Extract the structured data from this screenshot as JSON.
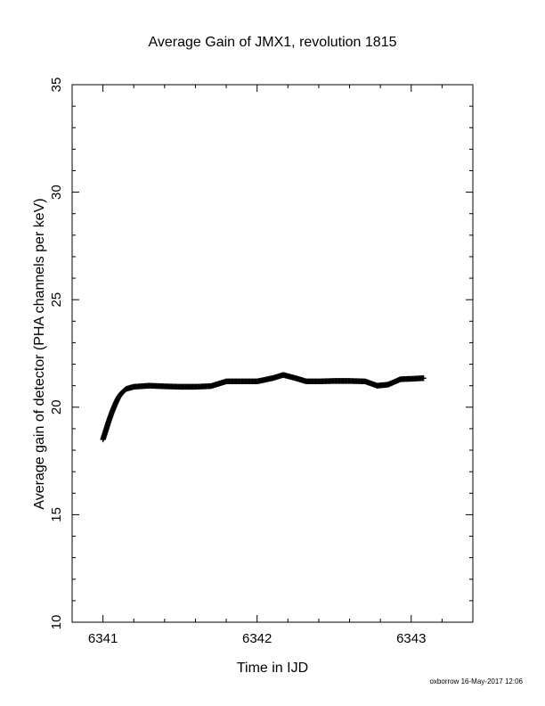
{
  "chart_data": {
    "type": "scatter",
    "title": "Average Gain of JMX1, revolution 1815",
    "xlabel": "Time in IJD",
    "ylabel": "Average gain of detector (PHA channels per keV)",
    "xlim": [
      6340.8,
      6343.4
    ],
    "ylim": [
      10,
      35
    ],
    "x_ticks": [
      6341,
      6342,
      6343
    ],
    "y_ticks": [
      10,
      15,
      20,
      25,
      30,
      35
    ],
    "x_minor_step": 0.2,
    "y_minor_step": 1,
    "marker": "plus",
    "marker_color": "#000000",
    "grid": false,
    "series": [
      {
        "values": [
          [
            6341.0,
            18.5
          ],
          [
            6341.02,
            18.95
          ],
          [
            6341.04,
            19.4
          ],
          [
            6341.06,
            19.8
          ],
          [
            6341.08,
            20.15
          ],
          [
            6341.1,
            20.45
          ],
          [
            6341.12,
            20.65
          ],
          [
            6341.15,
            20.85
          ],
          [
            6341.2,
            20.95
          ],
          [
            6341.3,
            21.0
          ],
          [
            6341.4,
            20.97
          ],
          [
            6341.5,
            20.95
          ],
          [
            6341.6,
            20.95
          ],
          [
            6341.7,
            20.98
          ],
          [
            6341.8,
            21.2
          ],
          [
            6341.9,
            21.2
          ],
          [
            6342.0,
            21.2
          ],
          [
            6342.1,
            21.35
          ],
          [
            6342.17,
            21.5
          ],
          [
            6342.25,
            21.35
          ],
          [
            6342.32,
            21.2
          ],
          [
            6342.4,
            21.2
          ],
          [
            6342.5,
            21.22
          ],
          [
            6342.6,
            21.22
          ],
          [
            6342.7,
            21.2
          ],
          [
            6342.78,
            21.0
          ],
          [
            6342.85,
            21.05
          ],
          [
            6342.93,
            21.3
          ],
          [
            6343.0,
            21.32
          ],
          [
            6343.08,
            21.35
          ]
        ]
      }
    ]
  },
  "footer": {
    "credit": "oxborrow 16-May-2017 12:06"
  }
}
